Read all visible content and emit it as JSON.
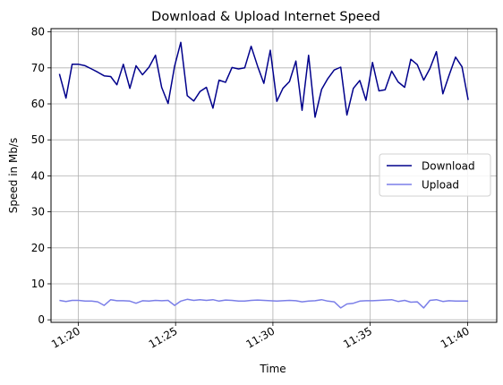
{
  "chart_data": {
    "type": "line",
    "title": "Download & Upload Internet Speed",
    "xlabel": "Time",
    "ylabel": "Speed in Mb/s",
    "ylim": [
      -0.7,
      80.9
    ],
    "xlim_minutes": [
      "11:18:36",
      "11:41:30"
    ],
    "yticks": [
      0,
      10,
      20,
      30,
      40,
      50,
      60,
      70,
      80
    ],
    "xticks": [
      {
        "label": "11:20",
        "time": "11:20"
      },
      {
        "label": "11:25",
        "time": "11:25"
      },
      {
        "label": "11:30",
        "time": "11:30"
      },
      {
        "label": "11:35",
        "time": "11:35"
      },
      {
        "label": "11:40",
        "time": "11:40"
      }
    ],
    "grid": true,
    "legend_position": "center-right",
    "series": [
      {
        "name": "Download",
        "color": "#00008b",
        "points": [
          [
            "11:19:02",
            68.3
          ],
          [
            "11:19:22",
            61.6
          ],
          [
            "11:19:41",
            71.0
          ],
          [
            "11:20:01",
            71.0
          ],
          [
            "11:20:21",
            70.6
          ],
          [
            "11:20:41",
            69.7
          ],
          [
            "11:21:00",
            68.8
          ],
          [
            "11:21:20",
            67.8
          ],
          [
            "11:21:40",
            67.6
          ],
          [
            "11:21:59",
            65.3
          ],
          [
            "11:22:19",
            71.0
          ],
          [
            "11:22:39",
            64.3
          ],
          [
            "11:22:58",
            70.6
          ],
          [
            "11:23:18",
            68.1
          ],
          [
            "11:23:38",
            70.2
          ],
          [
            "11:23:58",
            73.5
          ],
          [
            "11:24:17",
            64.6
          ],
          [
            "11:24:37",
            60.1
          ],
          [
            "11:24:57",
            70.5
          ],
          [
            "11:25:16",
            77.1
          ],
          [
            "11:25:36",
            62.3
          ],
          [
            "11:25:56",
            60.8
          ],
          [
            "11:26:15",
            63.4
          ],
          [
            "11:26:35",
            64.6
          ],
          [
            "11:26:55",
            58.8
          ],
          [
            "11:27:14",
            66.6
          ],
          [
            "11:27:34",
            66.0
          ],
          [
            "11:27:54",
            70.1
          ],
          [
            "11:28:14",
            69.7
          ],
          [
            "11:28:33",
            70.0
          ],
          [
            "11:28:53",
            76.0
          ],
          [
            "11:29:13",
            70.4
          ],
          [
            "11:29:32",
            65.7
          ],
          [
            "11:29:52",
            74.9
          ],
          [
            "11:30:12",
            60.7
          ],
          [
            "11:30:31",
            64.3
          ],
          [
            "11:30:51",
            66.2
          ],
          [
            "11:31:11",
            71.9
          ],
          [
            "11:31:30",
            58.2
          ],
          [
            "11:31:50",
            73.5
          ],
          [
            "11:32:10",
            56.3
          ],
          [
            "11:32:30",
            64.0
          ],
          [
            "11:32:49",
            67.0
          ],
          [
            "11:33:09",
            69.4
          ],
          [
            "11:33:29",
            70.2
          ],
          [
            "11:33:48",
            56.9
          ],
          [
            "11:34:08",
            64.3
          ],
          [
            "11:34:28",
            66.5
          ],
          [
            "11:34:47",
            61.0
          ],
          [
            "11:35:07",
            71.5
          ],
          [
            "11:35:27",
            63.6
          ],
          [
            "11:35:46",
            63.9
          ],
          [
            "11:36:06",
            69.1
          ],
          [
            "11:36:26",
            66.1
          ],
          [
            "11:36:46",
            64.6
          ],
          [
            "11:37:05",
            72.4
          ],
          [
            "11:37:25",
            70.9
          ],
          [
            "11:37:45",
            66.6
          ],
          [
            "11:38:04",
            69.8
          ],
          [
            "11:38:24",
            74.5
          ],
          [
            "11:38:44",
            62.8
          ],
          [
            "11:39:03",
            67.9
          ],
          [
            "11:39:23",
            73.0
          ],
          [
            "11:39:43",
            70.3
          ],
          [
            "11:40:02",
            61.1
          ]
        ]
      },
      {
        "name": "Upload",
        "color": "#7b7fe8",
        "points": [
          [
            "11:19:02",
            5.4
          ],
          [
            "11:19:22",
            5.1
          ],
          [
            "11:19:41",
            5.4
          ],
          [
            "11:20:01",
            5.4
          ],
          [
            "11:20:21",
            5.2
          ],
          [
            "11:20:41",
            5.2
          ],
          [
            "11:21:00",
            5.0
          ],
          [
            "11:21:20",
            4.0
          ],
          [
            "11:21:40",
            5.6
          ],
          [
            "11:21:59",
            5.3
          ],
          [
            "11:22:19",
            5.3
          ],
          [
            "11:22:39",
            5.2
          ],
          [
            "11:22:58",
            4.6
          ],
          [
            "11:23:18",
            5.3
          ],
          [
            "11:23:38",
            5.2
          ],
          [
            "11:23:58",
            5.4
          ],
          [
            "11:24:17",
            5.3
          ],
          [
            "11:24:37",
            5.4
          ],
          [
            "11:24:57",
            4.0
          ],
          [
            "11:25:16",
            5.2
          ],
          [
            "11:25:36",
            5.7
          ],
          [
            "11:25:56",
            5.4
          ],
          [
            "11:26:15",
            5.6
          ],
          [
            "11:26:35",
            5.4
          ],
          [
            "11:26:55",
            5.6
          ],
          [
            "11:27:14",
            5.2
          ],
          [
            "11:27:34",
            5.5
          ],
          [
            "11:27:54",
            5.4
          ],
          [
            "11:28:14",
            5.2
          ],
          [
            "11:28:33",
            5.2
          ],
          [
            "11:28:53",
            5.4
          ],
          [
            "11:29:13",
            5.5
          ],
          [
            "11:29:32",
            5.4
          ],
          [
            "11:29:52",
            5.3
          ],
          [
            "11:30:12",
            5.2
          ],
          [
            "11:30:31",
            5.3
          ],
          [
            "11:30:51",
            5.4
          ],
          [
            "11:31:11",
            5.3
          ],
          [
            "11:31:30",
            5.0
          ],
          [
            "11:31:50",
            5.2
          ],
          [
            "11:32:10",
            5.3
          ],
          [
            "11:32:30",
            5.6
          ],
          [
            "11:32:49",
            5.2
          ],
          [
            "11:33:09",
            5.0
          ],
          [
            "11:33:29",
            3.3
          ],
          [
            "11:33:48",
            4.4
          ],
          [
            "11:34:08",
            4.6
          ],
          [
            "11:34:28",
            5.2
          ],
          [
            "11:34:47",
            5.3
          ],
          [
            "11:35:07",
            5.3
          ],
          [
            "11:35:27",
            5.4
          ],
          [
            "11:35:46",
            5.5
          ],
          [
            "11:36:06",
            5.6
          ],
          [
            "11:36:26",
            5.1
          ],
          [
            "11:36:46",
            5.4
          ],
          [
            "11:37:05",
            4.9
          ],
          [
            "11:37:25",
            5.0
          ],
          [
            "11:37:45",
            3.3
          ],
          [
            "11:38:04",
            5.4
          ],
          [
            "11:38:24",
            5.6
          ],
          [
            "11:38:44",
            5.1
          ],
          [
            "11:39:03",
            5.3
          ],
          [
            "11:39:23",
            5.2
          ],
          [
            "11:39:43",
            5.2
          ],
          [
            "11:40:02",
            5.2
          ]
        ]
      }
    ]
  }
}
